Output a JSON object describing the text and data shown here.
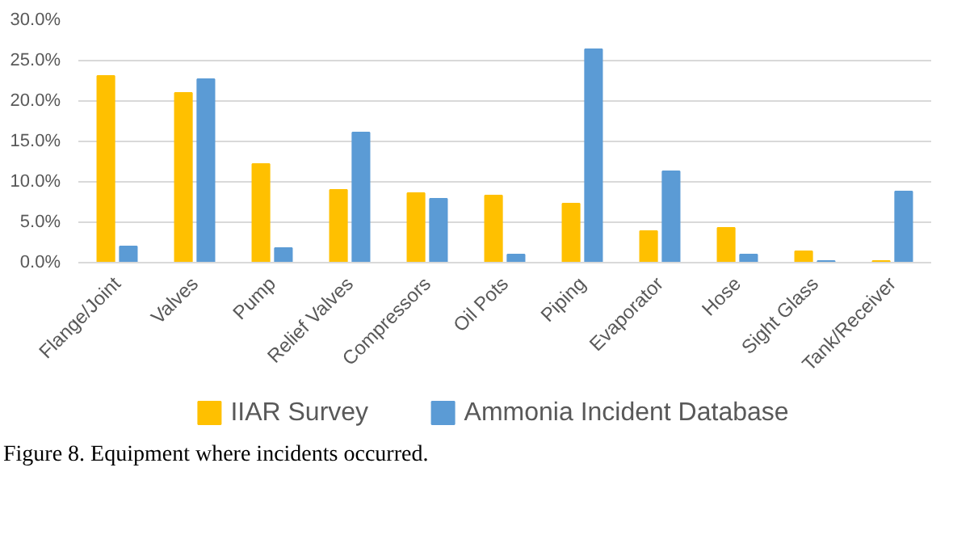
{
  "chart_data": {
    "type": "bar",
    "categories": [
      "Flange/Joint",
      "Valves",
      "Pump",
      "Relief Valves",
      "Compressors",
      "Oil Pots",
      "Piping",
      "Evaporator",
      "Hose",
      "Sight Glass",
      "Tank/Receiver"
    ],
    "series": [
      {
        "name": "IIAR Survey",
        "color": "#ffc000",
        "values": [
          23.1,
          21.0,
          12.2,
          9.0,
          8.6,
          8.3,
          7.3,
          3.9,
          4.3,
          1.4,
          0.2
        ]
      },
      {
        "name": "Ammonia Incident Database",
        "color": "#5b9bd5",
        "values": [
          2.0,
          22.7,
          1.8,
          16.1,
          7.9,
          1.0,
          26.4,
          11.3,
          1.0,
          0.2,
          8.8
        ]
      }
    ],
    "ylim": [
      0,
      30
    ],
    "yticks": [
      {
        "value": 0,
        "label": "0.0%"
      },
      {
        "value": 5,
        "label": "5.0%"
      },
      {
        "value": 10,
        "label": "10.0%"
      },
      {
        "value": 15,
        "label": "15.0%"
      },
      {
        "value": 20,
        "label": "20.0%"
      },
      {
        "value": 25,
        "label": "25.0%"
      },
      {
        "value": 30,
        "label": "30.0%"
      }
    ],
    "grid": "y",
    "legend": "bottom",
    "annotations": [
      "Figure 8. Equipment where incidents occurred."
    ]
  }
}
